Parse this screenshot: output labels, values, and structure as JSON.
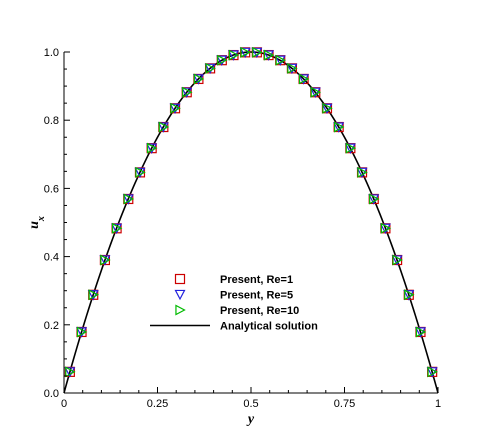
{
  "chart_data": {
    "type": "scatter",
    "xlabel": "y",
    "ylabel": "u",
    "ylabel_subscript": "x",
    "xlim": [
      0,
      1
    ],
    "ylim": [
      0,
      1
    ],
    "xticks": [
      "0",
      "0.25",
      "0.5",
      "0.75",
      "1"
    ],
    "yticks": [
      "0.0",
      "0.2",
      "0.4",
      "0.6",
      "0.8",
      "1.0"
    ],
    "grid": false,
    "legend_placement": "bottom-center",
    "x": [
      0.015625,
      0.046875,
      0.078125,
      0.109375,
      0.140625,
      0.171875,
      0.203125,
      0.234375,
      0.265625,
      0.296875,
      0.328125,
      0.359375,
      0.390625,
      0.421875,
      0.453125,
      0.484375,
      0.515625,
      0.546875,
      0.578125,
      0.609375,
      0.640625,
      0.671875,
      0.703125,
      0.734375,
      0.765625,
      0.796875,
      0.828125,
      0.859375,
      0.890625,
      0.921875,
      0.953125,
      0.984375
    ],
    "series": [
      {
        "name": "Present, Re=1",
        "marker": "square",
        "color": "#cc0000",
        "values": [
          0.062,
          0.179,
          0.288,
          0.39,
          0.483,
          0.569,
          0.647,
          0.718,
          0.78,
          0.835,
          0.882,
          0.921,
          0.952,
          0.976,
          0.991,
          0.999,
          0.999,
          0.991,
          0.976,
          0.952,
          0.921,
          0.882,
          0.835,
          0.78,
          0.718,
          0.647,
          0.569,
          0.483,
          0.39,
          0.288,
          0.179,
          0.062
        ]
      },
      {
        "name": "Present, Re=5",
        "marker": "triangle-down",
        "color": "#2222dd",
        "values": [
          0.062,
          0.179,
          0.288,
          0.39,
          0.483,
          0.569,
          0.647,
          0.718,
          0.78,
          0.835,
          0.882,
          0.921,
          0.952,
          0.976,
          0.991,
          0.999,
          0.999,
          0.991,
          0.976,
          0.952,
          0.921,
          0.882,
          0.835,
          0.78,
          0.718,
          0.647,
          0.569,
          0.483,
          0.39,
          0.288,
          0.179,
          0.062
        ]
      },
      {
        "name": "Present, Re=10",
        "marker": "triangle-right",
        "color": "#00bb00",
        "values": [
          0.062,
          0.179,
          0.288,
          0.39,
          0.483,
          0.569,
          0.647,
          0.718,
          0.78,
          0.835,
          0.882,
          0.921,
          0.952,
          0.976,
          0.991,
          0.999,
          0.999,
          0.991,
          0.976,
          0.952,
          0.921,
          0.882,
          0.835,
          0.78,
          0.718,
          0.647,
          0.569,
          0.483,
          0.39,
          0.288,
          0.179,
          0.062
        ]
      }
    ],
    "line": {
      "name": "Analytical solution",
      "color": "#000000",
      "formula": "4y(1-y)"
    }
  }
}
